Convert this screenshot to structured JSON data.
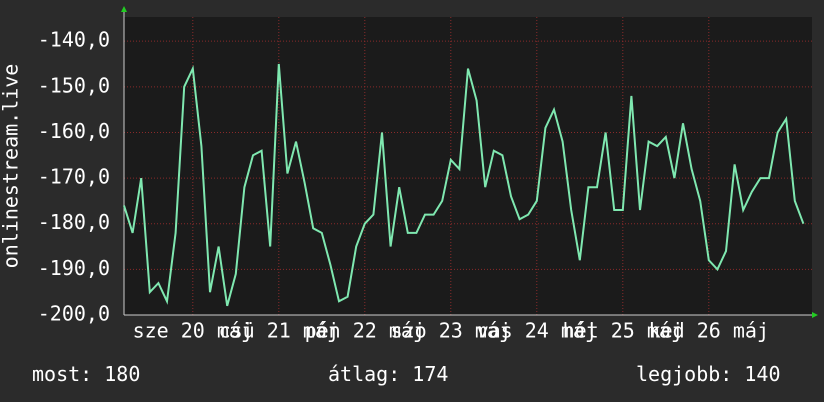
{
  "chart_data": {
    "type": "line",
    "y_label": "onlinestream.live",
    "xlim": [
      19.2,
      27.2
    ],
    "ylim": [
      -200,
      -134.7
    ],
    "xticks": [
      {
        "value": 20,
        "label": "sze 20 máj"
      },
      {
        "value": 21,
        "label": "csü 21 máj"
      },
      {
        "value": 22,
        "label": "pén 22 máj"
      },
      {
        "value": 23,
        "label": "szo 23 máj"
      },
      {
        "value": 24,
        "label": "vas 24 máj"
      },
      {
        "value": 25,
        "label": "hét 25 máj"
      },
      {
        "value": 26,
        "label": "ked 26 máj"
      }
    ],
    "yticks": [
      {
        "value": -140,
        "label": "-140,0"
      },
      {
        "value": -150,
        "label": "-150,0"
      },
      {
        "value": -160,
        "label": "-160,0"
      },
      {
        "value": -170,
        "label": "-170,0"
      },
      {
        "value": -180,
        "label": "-180,0"
      },
      {
        "value": -190,
        "label": "-190,0"
      },
      {
        "value": -200,
        "label": "-200,0"
      }
    ],
    "grid": true,
    "x": [
      19.2,
      19.3,
      19.4,
      19.5,
      19.6,
      19.7,
      19.8,
      19.9,
      20.0,
      20.1,
      20.2,
      20.3,
      20.4,
      20.5,
      20.6,
      20.7,
      20.8,
      20.9,
      21.0,
      21.1,
      21.2,
      21.3,
      21.4,
      21.5,
      21.6,
      21.7,
      21.8,
      21.9,
      22.0,
      22.1,
      22.2,
      22.3,
      22.4,
      22.5,
      22.6,
      22.7,
      22.8,
      22.9,
      23.0,
      23.1,
      23.2,
      23.3,
      23.4,
      23.5,
      23.6,
      23.7,
      23.8,
      23.9,
      24.0,
      24.1,
      24.2,
      24.3,
      24.4,
      24.5,
      24.6,
      24.7,
      24.8,
      24.9,
      25.0,
      25.1,
      25.2,
      25.3,
      25.4,
      25.5,
      25.6,
      25.7,
      25.8,
      25.9,
      26.0,
      26.1,
      26.2,
      26.3,
      26.4,
      26.5,
      26.6,
      26.7,
      26.8,
      26.9,
      27.0,
      27.1
    ],
    "series": [
      {
        "color": "#7fe8b0",
        "values": [
          -176,
          -182,
          -170,
          -195,
          -193,
          -197,
          -182,
          -150,
          -146,
          -163,
          -195,
          -185,
          -198,
          -191,
          -172,
          -165,
          -164,
          -185,
          -145,
          -169,
          -162,
          -171,
          -181,
          -182,
          -189,
          -197,
          -196,
          -185,
          -180,
          -178,
          -160,
          -185,
          -172,
          -182,
          -182,
          -178,
          -178,
          -175,
          -166,
          -168,
          -146,
          -153,
          -172,
          -164,
          -165,
          -174,
          -179,
          -178,
          -175,
          -159,
          -155,
          -162,
          -177,
          -188,
          -172,
          -172,
          -160,
          -177,
          -177,
          -152,
          -177,
          -162,
          -163,
          -161,
          -170,
          -158,
          -168,
          -175,
          -188,
          -190,
          -186,
          -167,
          -177,
          -173,
          -170,
          -170,
          -160,
          -157,
          -175,
          -180
        ]
      }
    ]
  },
  "footer": [
    {
      "label": "most:",
      "value": 180
    },
    {
      "label": "átlag:",
      "value": 174
    },
    {
      "label": "legjobb:",
      "value": 140
    }
  ]
}
